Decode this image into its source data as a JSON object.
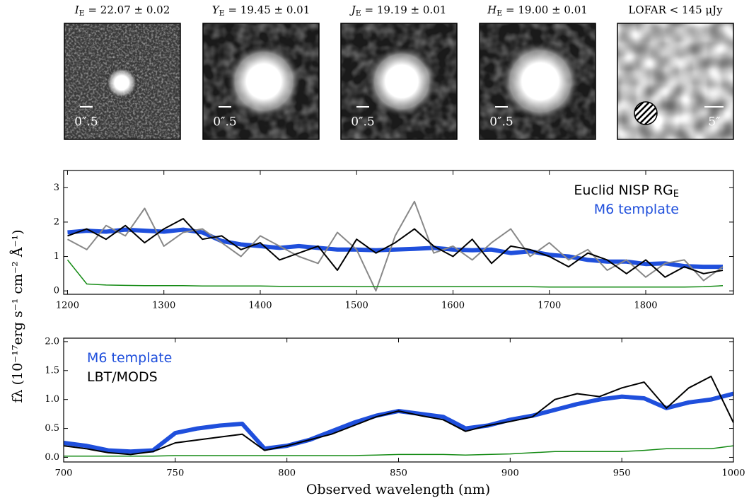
{
  "cutouts": [
    {
      "symbol": "I",
      "subscript": "E",
      "value": " = 22.07 ± 0.02",
      "scale": "0″.5"
    },
    {
      "symbol": "Y",
      "subscript": "E",
      "value": " = 19.45 ± 0.01",
      "scale": "0″.5"
    },
    {
      "symbol": "J",
      "subscript": "E",
      "value": " = 19.19 ± 0.01",
      "scale": "0″.5"
    },
    {
      "symbol": "H",
      "subscript": "E",
      "value": " = 19.00 ± 0.01",
      "scale": "0″.5"
    },
    {
      "symbol": "LOFAR",
      "subscript": "",
      "value": " < 145 μJy",
      "scale": "5″"
    }
  ],
  "chart_data": [
    {
      "type": "line",
      "ylabel": "fλ (10⁻¹⁷erg s⁻¹ cm⁻² Å⁻¹)",
      "legend": "upper right",
      "xlim": [
        1196,
        1891
      ],
      "xticks": [
        1200,
        1300,
        1400,
        1500,
        1600,
        1700,
        1800
      ],
      "ylim": [
        -0.1,
        3.5
      ],
      "yticks": [
        0,
        1,
        2,
        3
      ],
      "x": [
        1200,
        1220,
        1240,
        1260,
        1280,
        1300,
        1320,
        1340,
        1360,
        1380,
        1400,
        1420,
        1440,
        1460,
        1480,
        1500,
        1520,
        1540,
        1560,
        1580,
        1600,
        1620,
        1640,
        1660,
        1680,
        1700,
        1720,
        1740,
        1760,
        1780,
        1800,
        1820,
        1840,
        1860,
        1880
      ],
      "series": [
        {
          "name": "M6 template",
          "color": "#1f4fdc",
          "width": 6,
          "values": [
            1.7,
            1.75,
            1.72,
            1.78,
            1.75,
            1.72,
            1.78,
            1.7,
            1.45,
            1.35,
            1.3,
            1.25,
            1.3,
            1.25,
            1.2,
            1.2,
            1.18,
            1.2,
            1.22,
            1.25,
            1.2,
            1.18,
            1.2,
            1.1,
            1.15,
            1.05,
            1.0,
            0.9,
            0.85,
            0.85,
            0.78,
            0.8,
            0.72,
            0.7,
            0.7
          ]
        },
        {
          "color": "#888888",
          "width": 2,
          "values": [
            1.5,
            1.2,
            1.9,
            1.6,
            2.4,
            1.3,
            1.7,
            1.8,
            1.4,
            1.0,
            1.6,
            1.3,
            1.0,
            0.8,
            1.7,
            1.2,
            0.0,
            1.6,
            2.6,
            1.1,
            1.3,
            0.9,
            1.4,
            1.8,
            1.0,
            1.4,
            0.9,
            1.2,
            0.6,
            0.9,
            0.4,
            0.8,
            0.9,
            0.3,
            0.7
          ]
        },
        {
          "name": "Euclid NISP RG",
          "name_subscript": "E",
          "color": "#000000",
          "width": 2,
          "values": [
            1.6,
            1.8,
            1.5,
            1.9,
            1.4,
            1.8,
            2.1,
            1.5,
            1.6,
            1.2,
            1.4,
            0.9,
            1.1,
            1.3,
            0.6,
            1.5,
            1.1,
            1.4,
            1.8,
            1.3,
            1.0,
            1.5,
            0.8,
            1.3,
            1.2,
            1.0,
            0.7,
            1.1,
            0.9,
            0.5,
            0.9,
            0.4,
            0.7,
            0.5,
            0.6
          ]
        },
        {
          "color": "#138a13",
          "width": 1.5,
          "values": [
            0.9,
            0.2,
            0.17,
            0.16,
            0.15,
            0.15,
            0.15,
            0.14,
            0.14,
            0.14,
            0.14,
            0.13,
            0.13,
            0.13,
            0.13,
            0.12,
            0.12,
            0.12,
            0.12,
            0.12,
            0.12,
            0.12,
            0.12,
            0.12,
            0.12,
            0.11,
            0.11,
            0.11,
            0.11,
            0.11,
            0.11,
            0.11,
            0.11,
            0.12,
            0.15
          ]
        }
      ]
    },
    {
      "type": "line",
      "xlabel": "Observed wavelength (nm)",
      "legend": "upper left",
      "xlim": [
        700,
        1000
      ],
      "xticks": [
        700,
        750,
        800,
        850,
        900,
        950,
        1000
      ],
      "ylim": [
        -0.08,
        2.06
      ],
      "yticks": [
        {
          "value": 0,
          "label": "0.0"
        },
        0.5,
        {
          "value": 1,
          "label": "1.0"
        },
        1.5,
        {
          "value": 2,
          "label": "2.0"
        }
      ],
      "x": [
        700,
        710,
        720,
        730,
        740,
        750,
        760,
        770,
        780,
        790,
        800,
        810,
        820,
        830,
        840,
        850,
        860,
        870,
        880,
        890,
        900,
        910,
        920,
        930,
        940,
        950,
        960,
        970,
        980,
        990,
        1000
      ],
      "series": [
        {
          "name": "M6 template",
          "color": "#1f4fdc",
          "width": 6,
          "values": [
            0.25,
            0.2,
            0.12,
            0.1,
            0.12,
            0.42,
            0.5,
            0.55,
            0.58,
            0.15,
            0.2,
            0.3,
            0.45,
            0.6,
            0.72,
            0.8,
            0.75,
            0.7,
            0.5,
            0.55,
            0.65,
            0.72,
            0.82,
            0.92,
            1.0,
            1.05,
            1.02,
            0.85,
            0.95,
            1.0,
            1.1
          ]
        },
        {
          "name": "LBT/MODS",
          "color": "#000000",
          "width": 2,
          "values": [
            0.2,
            0.15,
            0.08,
            0.05,
            0.1,
            0.25,
            0.3,
            0.35,
            0.4,
            0.12,
            0.2,
            0.3,
            0.4,
            0.55,
            0.7,
            0.8,
            0.72,
            0.65,
            0.45,
            0.55,
            0.62,
            0.7,
            1.0,
            1.1,
            1.05,
            1.2,
            1.3,
            0.85,
            1.2,
            1.4,
            0.6
          ]
        },
        {
          "color": "#138a13",
          "width": 1.5,
          "values": [
            0.02,
            0.02,
            0.02,
            0.02,
            0.02,
            0.03,
            0.03,
            0.03,
            0.03,
            0.03,
            0.03,
            0.03,
            0.03,
            0.03,
            0.04,
            0.05,
            0.05,
            0.05,
            0.04,
            0.05,
            0.06,
            0.08,
            0.1,
            0.1,
            0.1,
            0.1,
            0.12,
            0.15,
            0.15,
            0.15,
            0.2
          ]
        }
      ]
    }
  ]
}
